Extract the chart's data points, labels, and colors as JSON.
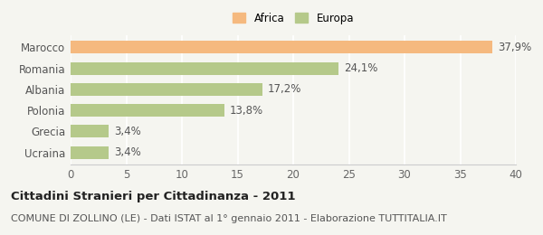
{
  "categories": [
    "Ucraina",
    "Grecia",
    "Polonia",
    "Albania",
    "Romania",
    "Marocco"
  ],
  "values": [
    3.4,
    3.4,
    13.8,
    17.2,
    24.1,
    37.9
  ],
  "labels": [
    "3,4%",
    "3,4%",
    "13,8%",
    "17,2%",
    "24,1%",
    "37,9%"
  ],
  "colors": [
    "#b5c98a",
    "#b5c98a",
    "#b5c98a",
    "#b5c98a",
    "#b5c98a",
    "#f5b97f"
  ],
  "legend": [
    {
      "label": "Africa",
      "color": "#f5b97f"
    },
    {
      "label": "Europa",
      "color": "#b5c98a"
    }
  ],
  "xlim": [
    0,
    40
  ],
  "xticks": [
    0,
    5,
    10,
    15,
    20,
    25,
    30,
    35,
    40
  ],
  "title": "Cittadini Stranieri per Cittadinanza - 2011",
  "subtitle": "COMUNE DI ZOLLINO (LE) - Dati ISTAT al 1° gennaio 2011 - Elaborazione TUTTITALIA.IT",
  "background_color": "#f5f5f0",
  "bar_height": 0.6,
  "title_fontsize": 9.5,
  "subtitle_fontsize": 8.0,
  "label_fontsize": 8.5,
  "tick_fontsize": 8.5
}
